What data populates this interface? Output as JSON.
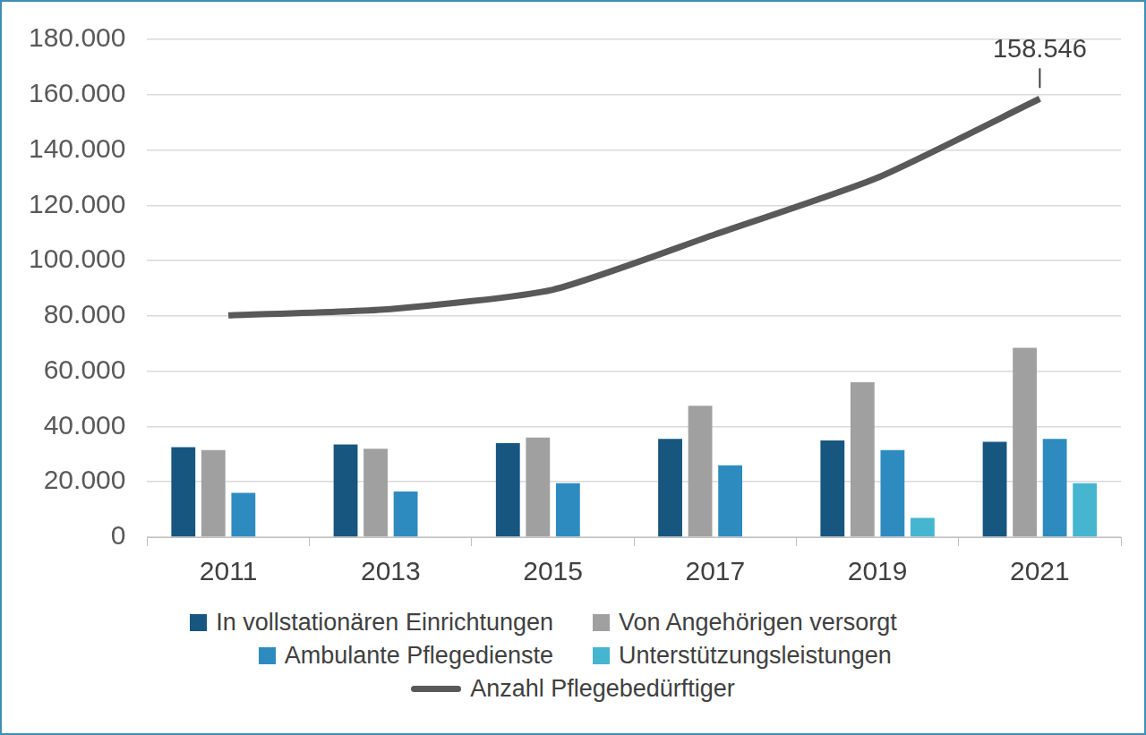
{
  "chart_data": {
    "type": "bar",
    "categories": [
      "2011",
      "2013",
      "2015",
      "2017",
      "2019",
      "2021"
    ],
    "series": [
      {
        "name": "In vollstationären Einrichtungen",
        "color": "#17567f",
        "values": [
          32500,
          33500,
          34000,
          35500,
          35000,
          34500
        ]
      },
      {
        "name": "Von Angehörigen versorgt",
        "color": "#a0a0a0",
        "values": [
          31500,
          32000,
          36000,
          47500,
          56000,
          68500
        ]
      },
      {
        "name": "Ambulante Pflegedienste",
        "color": "#2e8bc0",
        "values": [
          16000,
          16500,
          19500,
          26000,
          31500,
          35500
        ]
      },
      {
        "name": "Unterstützungsleistungen",
        "color": "#45b5d0",
        "values": [
          null,
          null,
          null,
          null,
          7000,
          19500
        ]
      },
      {
        "name": "Anzahl Pflegebedürftiger",
        "type": "line",
        "color": "#595959",
        "values": [
          80200,
          82500,
          89500,
          109500,
          130000,
          158546
        ],
        "data_labels": true,
        "value_labels": [
          null,
          null,
          null,
          null,
          null,
          "158.546"
        ]
      }
    ],
    "ylim": [
      0,
      180000
    ],
    "yticks": [
      0,
      {
        "value": 20000,
        "label": "20.000"
      },
      {
        "value": 40000,
        "label": "40.000"
      },
      {
        "value": 60000,
        "label": "60.000"
      },
      {
        "value": 80000,
        "label": "80.000"
      },
      {
        "value": 100000,
        "label": "100.000"
      },
      {
        "value": 120000,
        "label": "120.000"
      },
      {
        "value": 140000,
        "label": "140.000"
      },
      {
        "value": 160000,
        "label": "160.000"
      },
      {
        "value": 180000,
        "label": "180.000"
      }
    ],
    "grid": true,
    "legend": "bottom"
  }
}
